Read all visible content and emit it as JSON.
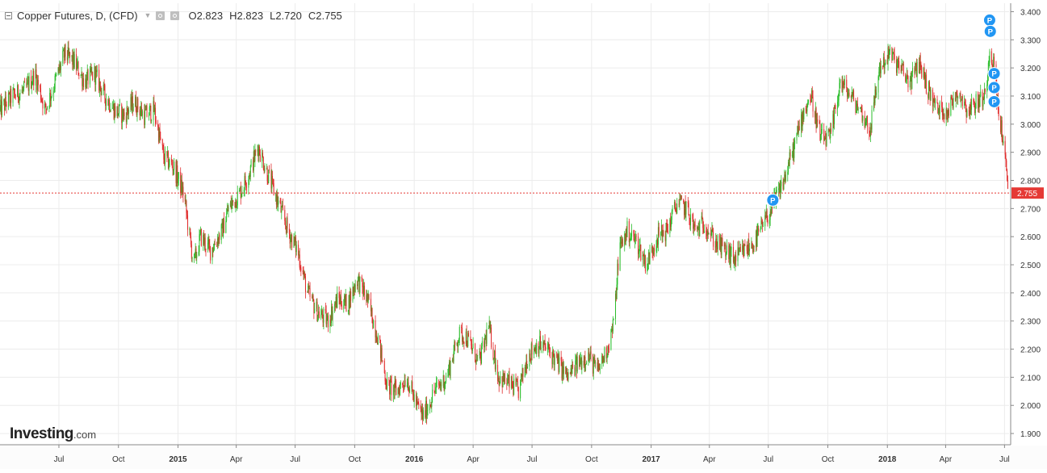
{
  "header": {
    "symbol_title": "Copper Futures, D, (CFD)",
    "ohlc": [
      {
        "key": "O",
        "value": "2.823"
      },
      {
        "key": "H",
        "value": "2.823"
      },
      {
        "key": "L",
        "value": "2.720"
      },
      {
        "key": "C",
        "value": "2.755"
      }
    ]
  },
  "logo": {
    "main": "Investing",
    "suffix": ".com"
  },
  "colors": {
    "up": "#2bbd2b",
    "down": "#e02a2a",
    "grid": "#ececec",
    "axis_text": "#333333",
    "price_line": "#e53935",
    "marker": "#2196f3"
  },
  "chart_data": {
    "type": "candlestick",
    "title": "Copper Futures, D, (CFD)",
    "xlabel": "",
    "ylabel": "",
    "ylim": [
      1.86,
      3.43
    ],
    "grid": true,
    "y_ticks": [
      1.9,
      2.0,
      2.1,
      2.2,
      2.3,
      2.4,
      2.5,
      2.6,
      2.7,
      2.8,
      2.9,
      3.0,
      3.1,
      3.2,
      3.3,
      3.4
    ],
    "y_tick_labels": [
      "1.900",
      "2.000",
      "2.100",
      "2.200",
      "2.300",
      "2.400",
      "2.500",
      "2.600",
      "2.700",
      "2.800",
      "2.900",
      "3.000",
      "3.100",
      "3.200",
      "3.300",
      "3.400"
    ],
    "x_start": "2014-04-01",
    "x_end": "2018-07-08",
    "x_ticks": [
      {
        "date": "2014-07-01",
        "label": "Jul",
        "bold": false
      },
      {
        "date": "2014-10-01",
        "label": "Oct",
        "bold": false
      },
      {
        "date": "2015-01-01",
        "label": "2015",
        "bold": true
      },
      {
        "date": "2015-04-01",
        "label": "Apr",
        "bold": false
      },
      {
        "date": "2015-07-01",
        "label": "Jul",
        "bold": false
      },
      {
        "date": "2015-10-01",
        "label": "Oct",
        "bold": false
      },
      {
        "date": "2016-01-01",
        "label": "2016",
        "bold": true
      },
      {
        "date": "2016-04-01",
        "label": "Apr",
        "bold": false
      },
      {
        "date": "2016-07-01",
        "label": "Jul",
        "bold": false
      },
      {
        "date": "2016-10-01",
        "label": "Oct",
        "bold": false
      },
      {
        "date": "2017-01-01",
        "label": "2017",
        "bold": true
      },
      {
        "date": "2017-04-01",
        "label": "Apr",
        "bold": false
      },
      {
        "date": "2017-07-01",
        "label": "Jul",
        "bold": false
      },
      {
        "date": "2017-10-01",
        "label": "Oct",
        "bold": false
      },
      {
        "date": "2018-01-01",
        "label": "2018",
        "bold": true
      },
      {
        "date": "2018-04-01",
        "label": "Apr",
        "bold": false
      },
      {
        "date": "2018-07-01",
        "label": "Jul",
        "bold": false
      }
    ],
    "close_path": [
      [
        "2014-04-01",
        3.05
      ],
      [
        "2014-04-20",
        3.1
      ],
      [
        "2014-05-10",
        3.12
      ],
      [
        "2014-05-25",
        3.18
      ],
      [
        "2014-06-10",
        3.05
      ],
      [
        "2014-06-25",
        3.15
      ],
      [
        "2014-07-10",
        3.25
      ],
      [
        "2014-07-25",
        3.22
      ],
      [
        "2014-08-10",
        3.15
      ],
      [
        "2014-08-25",
        3.18
      ],
      [
        "2014-09-10",
        3.1
      ],
      [
        "2014-09-25",
        3.05
      ],
      [
        "2014-10-10",
        3.03
      ],
      [
        "2014-10-25",
        3.08
      ],
      [
        "2014-11-10",
        3.03
      ],
      [
        "2014-11-25",
        3.05
      ],
      [
        "2014-12-10",
        2.88
      ],
      [
        "2014-12-25",
        2.85
      ],
      [
        "2015-01-10",
        2.75
      ],
      [
        "2015-01-25",
        2.5
      ],
      [
        "2015-02-05",
        2.6
      ],
      [
        "2015-02-20",
        2.55
      ],
      [
        "2015-03-10",
        2.62
      ],
      [
        "2015-03-20",
        2.7
      ],
      [
        "2015-04-05",
        2.75
      ],
      [
        "2015-04-20",
        2.82
      ],
      [
        "2015-05-05",
        2.92
      ],
      [
        "2015-05-20",
        2.82
      ],
      [
        "2015-06-05",
        2.72
      ],
      [
        "2015-06-20",
        2.62
      ],
      [
        "2015-07-05",
        2.55
      ],
      [
        "2015-07-20",
        2.4
      ],
      [
        "2015-08-05",
        2.33
      ],
      [
        "2015-08-20",
        2.3
      ],
      [
        "2015-09-05",
        2.38
      ],
      [
        "2015-09-20",
        2.36
      ],
      [
        "2015-10-05",
        2.45
      ],
      [
        "2015-10-20",
        2.38
      ],
      [
        "2015-11-05",
        2.25
      ],
      [
        "2015-11-20",
        2.07
      ],
      [
        "2015-12-05",
        2.05
      ],
      [
        "2015-12-20",
        2.1
      ],
      [
        "2016-01-05",
        2.0
      ],
      [
        "2016-01-15",
        1.96
      ],
      [
        "2016-02-01",
        2.05
      ],
      [
        "2016-02-20",
        2.1
      ],
      [
        "2016-03-10",
        2.25
      ],
      [
        "2016-03-20",
        2.25
      ],
      [
        "2016-04-10",
        2.15
      ],
      [
        "2016-04-25",
        2.28
      ],
      [
        "2016-05-10",
        2.1
      ],
      [
        "2016-05-25",
        2.08
      ],
      [
        "2016-06-10",
        2.05
      ],
      [
        "2016-06-25",
        2.18
      ],
      [
        "2016-07-10",
        2.22
      ],
      [
        "2016-07-25",
        2.2
      ],
      [
        "2016-08-10",
        2.15
      ],
      [
        "2016-08-25",
        2.1
      ],
      [
        "2016-09-10",
        2.15
      ],
      [
        "2016-09-25",
        2.18
      ],
      [
        "2016-10-10",
        2.12
      ],
      [
        "2016-10-25",
        2.2
      ],
      [
        "2016-11-05",
        2.3
      ],
      [
        "2016-11-12",
        2.55
      ],
      [
        "2016-11-25",
        2.62
      ],
      [
        "2016-12-10",
        2.58
      ],
      [
        "2016-12-25",
        2.5
      ],
      [
        "2017-01-10",
        2.6
      ],
      [
        "2017-01-25",
        2.62
      ],
      [
        "2017-02-10",
        2.72
      ],
      [
        "2017-02-25",
        2.7
      ],
      [
        "2017-03-10",
        2.62
      ],
      [
        "2017-03-25",
        2.65
      ],
      [
        "2017-04-10",
        2.58
      ],
      [
        "2017-04-25",
        2.55
      ],
      [
        "2017-05-10",
        2.52
      ],
      [
        "2017-05-25",
        2.55
      ],
      [
        "2017-06-10",
        2.58
      ],
      [
        "2017-06-25",
        2.65
      ],
      [
        "2017-07-10",
        2.72
      ],
      [
        "2017-07-25",
        2.8
      ],
      [
        "2017-08-10",
        2.92
      ],
      [
        "2017-08-25",
        3.05
      ],
      [
        "2017-09-05",
        3.1
      ],
      [
        "2017-09-20",
        2.95
      ],
      [
        "2017-10-05",
        2.95
      ],
      [
        "2017-10-20",
        3.15
      ],
      [
        "2017-11-05",
        3.1
      ],
      [
        "2017-11-20",
        3.05
      ],
      [
        "2017-12-05",
        2.98
      ],
      [
        "2017-12-20",
        3.2
      ],
      [
        "2018-01-05",
        3.25
      ],
      [
        "2018-01-20",
        3.2
      ],
      [
        "2018-02-05",
        3.15
      ],
      [
        "2018-02-20",
        3.22
      ],
      [
        "2018-03-05",
        3.12
      ],
      [
        "2018-03-20",
        3.05
      ],
      [
        "2018-04-05",
        3.05
      ],
      [
        "2018-04-20",
        3.12
      ],
      [
        "2018-05-05",
        3.05
      ],
      [
        "2018-05-20",
        3.08
      ],
      [
        "2018-06-01",
        3.1
      ],
      [
        "2018-06-08",
        3.27
      ],
      [
        "2018-06-15",
        3.2
      ],
      [
        "2018-06-22",
        3.03
      ],
      [
        "2018-06-29",
        2.95
      ],
      [
        "2018-07-06",
        2.755
      ]
    ],
    "last_price": {
      "value": 2.755,
      "label": "2.755"
    },
    "markers": [
      {
        "date": "2017-07-08",
        "price": 2.73,
        "label": "P"
      },
      {
        "date": "2018-06-08",
        "price": 3.37,
        "label": "P"
      },
      {
        "date": "2018-06-09",
        "price": 3.33,
        "label": "P"
      },
      {
        "date": "2018-06-15",
        "price": 3.18,
        "label": "P"
      },
      {
        "date": "2018-06-15",
        "price": 3.13,
        "label": "P"
      },
      {
        "date": "2018-06-15",
        "price": 3.08,
        "label": "P"
      }
    ]
  }
}
